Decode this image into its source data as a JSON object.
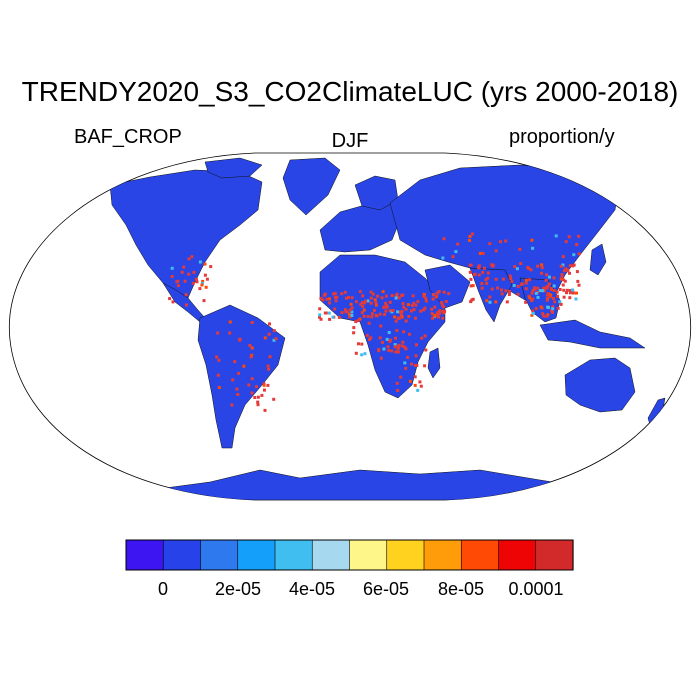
{
  "title": "TRENDY2020_S3_CO2ClimateLUC (yrs 2000-2018)",
  "left_label": "BAF_CROP",
  "center_label": "DJF",
  "right_label": "proportion/y",
  "colorbar": {
    "colors": [
      "#3d14f2",
      "#2642e8",
      "#2f79ee",
      "#14a0fa",
      "#40bef0",
      "#a6d8f0",
      "#fff68a",
      "#ffd21f",
      "#ff9c0a",
      "#ff4a05",
      "#ee0404",
      "#d22a2a"
    ],
    "tick_labels": [
      "0",
      "2e-05",
      "4e-05",
      "6e-05",
      "8e-05",
      "0.0001"
    ]
  },
  "map": {
    "land_color": "#2945e6",
    "hotspot_color": "#e53a3a"
  }
}
